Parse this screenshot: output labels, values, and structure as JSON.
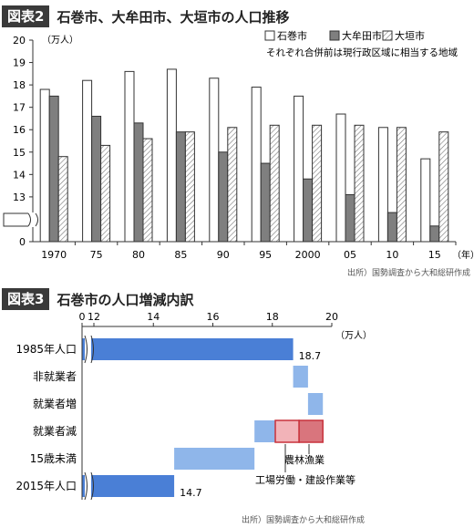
{
  "figure2": {
    "badge": "図表2",
    "title": "石巻市、大牟田市、大垣市の人口推移",
    "source": "出所）国勢調査から大和総研作成",
    "note": "それぞれ合併前は現行政区域に相当する地域",
    "chart_data": {
      "type": "bar",
      "categories": [
        "1970",
        "75",
        "80",
        "85",
        "90",
        "95",
        "2000",
        "05",
        "10",
        "15"
      ],
      "x_unit": "（年）",
      "y_unit": "（万人）",
      "ylim": [
        11,
        20
      ],
      "y_ticks": [
        "20",
        "19",
        "18",
        "17",
        "16",
        "15",
        "14",
        "13",
        "12",
        "0"
      ],
      "y_axis_break": true,
      "legend_position": "top-right",
      "series": [
        {
          "name": "石巻市",
          "color": "#ffffff",
          "pattern": "solid-white",
          "values": [
            17.8,
            18.2,
            18.6,
            18.7,
            18.3,
            17.9,
            17.5,
            16.7,
            16.1,
            14.7
          ]
        },
        {
          "name": "大牟田市",
          "color": "#7f7f7f",
          "pattern": "solid-gray",
          "values": [
            17.5,
            16.6,
            16.3,
            15.9,
            15.0,
            14.5,
            13.8,
            13.1,
            12.3,
            11.7
          ]
        },
        {
          "name": "大垣市",
          "color": "#ffffff",
          "pattern": "hatched",
          "values": [
            14.8,
            15.3,
            15.6,
            15.9,
            16.1,
            16.2,
            16.2,
            16.2,
            16.1,
            15.9
          ]
        }
      ]
    }
  },
  "figure3": {
    "badge": "図表3",
    "title": "石巻市の人口増減内訳",
    "source": "出所）国勢調査から大和総研作成",
    "chart_data": {
      "type": "bar",
      "orientation": "horizontal-waterfall",
      "x_unit": "（万人）",
      "x_ticks": [
        "0",
        "12",
        "14",
        "16",
        "18",
        "20"
      ],
      "xlim": [
        11,
        20
      ],
      "x_axis_break": true,
      "categories": [
        "1985年人口",
        "非就業者",
        "就業者増",
        "就業者減",
        "15歳未満",
        "2015年人口"
      ],
      "bars": [
        {
          "category": "1985年人口",
          "start": 0,
          "end": 18.7,
          "kind": "total",
          "label": "18.7"
        },
        {
          "category": "非就業者",
          "start": 18.7,
          "end": 19.2,
          "kind": "change"
        },
        {
          "category": "就業者増",
          "start": 19.2,
          "end": 19.7,
          "kind": "change"
        },
        {
          "category": "就業者減",
          "start": 17.4,
          "end": 19.7,
          "kind": "change",
          "segments": [
            {
              "name": "",
              "start": 17.4,
              "end": 18.1,
              "kind": "change"
            },
            {
              "name": "工場労働・建設作業等",
              "start": 18.1,
              "end": 18.9,
              "kind": "highlight-light"
            },
            {
              "name": "農林漁業",
              "start": 18.9,
              "end": 19.7,
              "kind": "highlight-dark"
            }
          ]
        },
        {
          "category": "15歳未満",
          "start": 14.7,
          "end": 17.4,
          "kind": "change"
        },
        {
          "category": "2015年人口",
          "start": 0,
          "end": 14.7,
          "kind": "total",
          "label": "14.7"
        }
      ],
      "annotations": [
        "農林漁業",
        "工場労働・建設作業等"
      ]
    },
    "colors": {
      "total": "#4a7fd6",
      "change": "#8fb6ea",
      "highlight_light": "#f2b3b8",
      "highlight_dark": "#d9757d",
      "highlight_border": "#c8323c"
    }
  }
}
